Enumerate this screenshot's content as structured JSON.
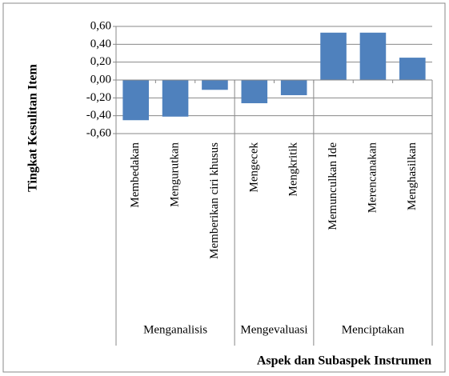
{
  "chart_data": {
    "type": "bar",
    "y_axis_label": "Tingkat Kesulitan Item",
    "x_axis_label": "Aspek dan Subaspek Instrumen",
    "color": "#4f81bd",
    "grid": true,
    "ylim": [
      -0.6,
      0.6
    ],
    "yticks": [
      {
        "value": 0.6,
        "label": "0,60"
      },
      {
        "value": 0.4,
        "label": "0,40"
      },
      {
        "value": 0.2,
        "label": "0,20"
      },
      {
        "value": 0,
        "label": "0,00"
      },
      {
        "value": -0.2,
        "label": "-0,20"
      },
      {
        "value": -0.4,
        "label": "-0,40"
      },
      {
        "value": -0.6,
        "label": "-0,60"
      }
    ],
    "groups": [
      {
        "name": "Menganalisis",
        "categories": [
          "Membedakan",
          "Mengurutkan",
          "Memberikan ciri khusus"
        ],
        "values": [
          -0.45,
          -0.41,
          -0.11
        ]
      },
      {
        "name": "Mengevaluasi",
        "categories": [
          "Mengecek",
          "Mengkritik"
        ],
        "values": [
          -0.26,
          -0.17
        ]
      },
      {
        "name": "Menciptakan",
        "categories": [
          "Memunculkan Ide",
          "Merencanakan",
          "Menghasilkan"
        ],
        "values": [
          0.53,
          0.53,
          0.25
        ]
      }
    ]
  }
}
